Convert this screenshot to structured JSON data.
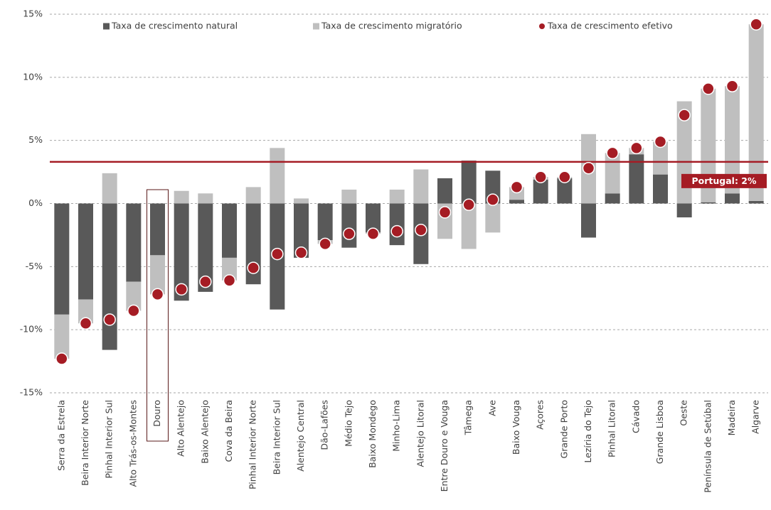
{
  "chart_data": {
    "type": "bar",
    "stacked": true,
    "categories": [
      "Serra da Estrela",
      "Beira Interior Norte",
      "Pinhal Interior Sul",
      "Alto Trás-os-Montes",
      "Douro",
      "Alto Alentejo",
      "Baixo Alentejo",
      "Cova da Beira",
      "Pinhal Interior Norte",
      "Beira Interior Sul",
      "Alentejo Central",
      "Dão-Lafões",
      "Médio Tejo",
      "Baixo Mondego",
      "Minho-Lima",
      "Alentejo Litoral",
      "Entre Douro e Vouga",
      "Tâmega",
      "Ave",
      "Baixo Vouga",
      "Açores",
      "Grande Porto",
      "Lezíria do Tejo",
      "Pinhal Litoral",
      "Cávado",
      "Grande Lisboa",
      "Oeste",
      "Península de Setúbal",
      "Madeira",
      "Algarve"
    ],
    "series": [
      {
        "name": "Taxa de crescimento natural",
        "color": "#595959",
        "kind": "bar",
        "values": [
          -8.8,
          -7.6,
          -11.6,
          -6.2,
          -4.1,
          -7.7,
          -7.0,
          -4.3,
          -6.4,
          -8.4,
          -4.3,
          -2.9,
          -3.5,
          -2.3,
          -3.3,
          -4.8,
          2.0,
          3.4,
          2.6,
          0.3,
          1.9,
          2.0,
          -2.7,
          0.8,
          3.9,
          2.3,
          -1.1,
          0.1,
          0.8,
          0.2
        ]
      },
      {
        "name": "Taxa de crescimento migratório",
        "color": "#bfbfbf",
        "kind": "bar",
        "values": [
          -3.5,
          -1.9,
          2.4,
          -2.3,
          -3.1,
          1.0,
          0.8,
          -1.8,
          1.3,
          4.4,
          0.4,
          -0.3,
          1.1,
          -0.1,
          1.1,
          2.7,
          -2.8,
          -3.6,
          -2.3,
          1.0,
          0.2,
          0.1,
          5.5,
          3.2,
          0.5,
          2.6,
          8.1,
          9.0,
          8.5,
          14.0
        ]
      },
      {
        "name": "Taxa de crescimento efetivo",
        "color": "#a51c24",
        "kind": "dot",
        "values": [
          -12.3,
          -9.5,
          -9.2,
          -8.5,
          -7.2,
          -6.8,
          -6.2,
          -6.1,
          -5.1,
          -4.0,
          -3.9,
          -3.2,
          -2.4,
          -2.4,
          -2.2,
          -2.1,
          -0.7,
          -0.1,
          0.3,
          1.3,
          2.1,
          2.1,
          2.8,
          4.0,
          4.4,
          4.9,
          7.0,
          9.1,
          9.3,
          14.2
        ]
      }
    ],
    "ylim": [
      -15,
      15
    ],
    "yticks": [
      {
        "value": -15,
        "label": "-15%"
      },
      {
        "value": -10,
        "label": "-10%"
      },
      {
        "value": -5,
        "label": "-5%"
      },
      {
        "value": 0,
        "label": "0%"
      },
      {
        "value": 5,
        "label": "5%"
      },
      {
        "value": 10,
        "label": "10%"
      },
      {
        "value": 15,
        "label": "15%"
      }
    ],
    "grid": true,
    "legend": "top",
    "highlight": "Douro",
    "reference_value": 3.3,
    "reference_color": "#a51c24",
    "reference_label": "Portugal: 2%"
  }
}
